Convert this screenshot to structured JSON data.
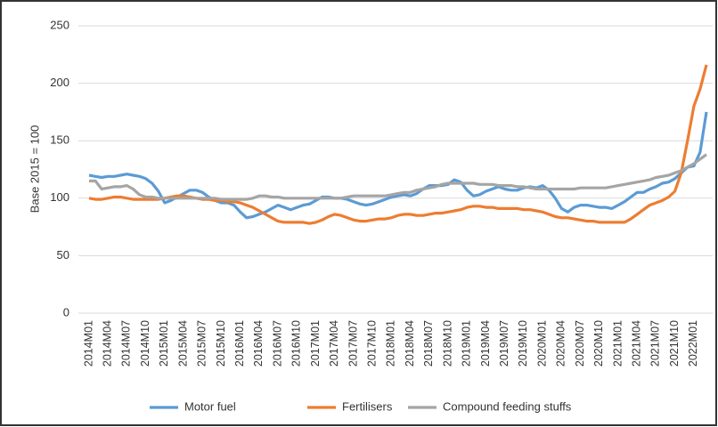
{
  "chart_data": {
    "type": "line",
    "ylabel": "Base 2015 = 100",
    "categories": [
      "2014M01",
      null,
      null,
      "2014M04",
      null,
      null,
      "2014M07",
      null,
      null,
      "2014M10",
      null,
      null,
      "2015M01",
      null,
      null,
      "2015M04",
      null,
      null,
      "2015M07",
      null,
      null,
      "2015M10",
      null,
      null,
      "2016M01",
      null,
      null,
      "2016M04",
      null,
      null,
      "2016M07",
      null,
      null,
      "2016M10",
      null,
      null,
      "2017M01",
      null,
      null,
      "2017M04",
      null,
      null,
      "2017M07",
      null,
      null,
      "2017M10",
      null,
      null,
      "2018M01",
      null,
      null,
      "2018M04",
      null,
      null,
      "2018M07",
      null,
      null,
      "2018M10",
      null,
      null,
      "2019M01",
      null,
      null,
      "2019M04",
      null,
      null,
      "2019M07",
      null,
      null,
      "2019M10",
      null,
      null,
      "2020M01",
      null,
      null,
      "2020M04",
      null,
      null,
      "2020M07",
      null,
      null,
      "2020M10",
      null,
      null,
      "2021M01",
      null,
      null,
      "2021M04",
      null,
      null,
      "2021M07",
      null,
      null,
      "2021M10",
      null,
      null,
      "2022M01",
      null,
      null
    ],
    "series": [
      {
        "name": "Motor fuel",
        "color": "#5b9bd5",
        "values": [
          120,
          119,
          118,
          119,
          119,
          120,
          121,
          120,
          119,
          117,
          113,
          106,
          96,
          98,
          101,
          104,
          107,
          107,
          105,
          101,
          98,
          96,
          96,
          94,
          88,
          83,
          84,
          86,
          88,
          91,
          94,
          92,
          90,
          92,
          94,
          95,
          98,
          101,
          101,
          100,
          100,
          99,
          97,
          95,
          94,
          95,
          97,
          99,
          101,
          102,
          103,
          102,
          104,
          108,
          111,
          111,
          111,
          112,
          116,
          114,
          107,
          102,
          103,
          106,
          108,
          110,
          108,
          107,
          107,
          109,
          110,
          109,
          111,
          107,
          100,
          91,
          88,
          92,
          94,
          94,
          93,
          92,
          92,
          91,
          94,
          97,
          101,
          105,
          105,
          108,
          110,
          113,
          114,
          117,
          122,
          127,
          128,
          140,
          175
        ]
      },
      {
        "name": "Fertilisers",
        "color": "#ed7d31",
        "values": [
          100,
          99,
          99,
          100,
          101,
          101,
          100,
          99,
          99,
          99,
          99,
          99,
          100,
          101,
          102,
          102,
          101,
          100,
          99,
          99,
          98,
          98,
          97,
          97,
          96,
          94,
          92,
          89,
          86,
          83,
          80,
          79,
          79,
          79,
          79,
          78,
          79,
          81,
          84,
          86,
          85,
          83,
          81,
          80,
          80,
          81,
          82,
          82,
          83,
          85,
          86,
          86,
          85,
          85,
          86,
          87,
          87,
          88,
          89,
          90,
          92,
          93,
          93,
          92,
          92,
          91,
          91,
          91,
          91,
          90,
          90,
          89,
          88,
          86,
          84,
          83,
          83,
          82,
          81,
          80,
          80,
          79,
          79,
          79,
          79,
          79,
          82,
          86,
          90,
          94,
          96,
          98,
          101,
          106,
          122,
          150,
          180,
          195,
          216
        ]
      },
      {
        "name": "Compound feeding stuffs",
        "color": "#a5a5a5",
        "values": [
          115,
          115,
          108,
          109,
          110,
          110,
          111,
          108,
          103,
          101,
          101,
          100,
          100,
          100,
          100,
          100,
          100,
          100,
          100,
          100,
          100,
          99,
          99,
          99,
          99,
          99,
          100,
          102,
          102,
          101,
          101,
          100,
          100,
          100,
          100,
          100,
          100,
          100,
          100,
          100,
          100,
          101,
          102,
          102,
          102,
          102,
          102,
          102,
          103,
          104,
          105,
          105,
          107,
          108,
          109,
          110,
          112,
          113,
          113,
          113,
          113,
          113,
          112,
          112,
          112,
          111,
          111,
          111,
          110,
          110,
          109,
          108,
          108,
          108,
          108,
          108,
          108,
          108,
          109,
          109,
          109,
          109,
          109,
          110,
          111,
          112,
          113,
          114,
          115,
          116,
          118,
          119,
          120,
          122,
          124,
          127,
          130,
          134,
          138
        ]
      }
    ],
    "ylim": [
      0,
      250
    ],
    "yticks": [
      0,
      50,
      100,
      150,
      200,
      250
    ],
    "grid": true,
    "legend": "bottom"
  }
}
